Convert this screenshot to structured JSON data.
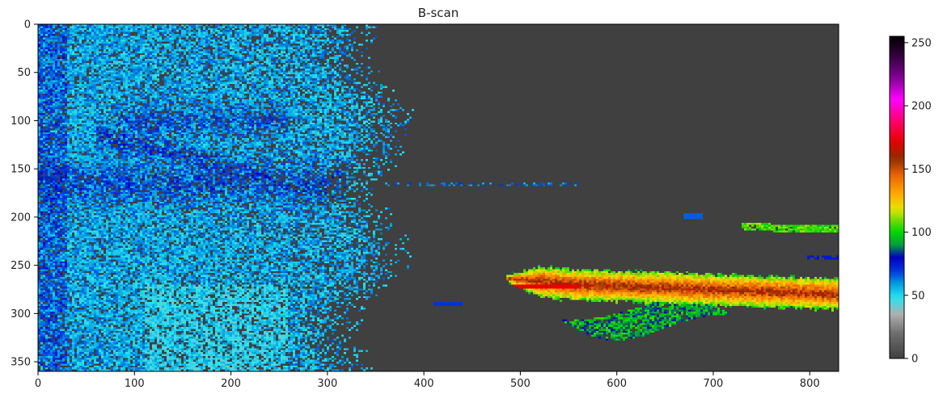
{
  "chart_data": {
    "type": "heatmap",
    "title": "B-scan",
    "xlabel": "",
    "ylabel": "",
    "xlim": [
      0,
      830
    ],
    "ylim": [
      360,
      0
    ],
    "x_ticks": [
      0,
      100,
      200,
      300,
      400,
      500,
      600,
      700,
      800
    ],
    "y_ticks": [
      0,
      50,
      100,
      150,
      200,
      250,
      300,
      350
    ],
    "colorbar": {
      "range": [
        0,
        255
      ],
      "ticks": [
        0,
        50,
        100,
        150,
        200,
        250
      ],
      "colormap": "nipy_spectral-like (dark grey at 0, cyan ~50, blue ~75, green ~100, yellow ~120, orange ~140, red ~170, magenta ~200, black at 255)"
    },
    "background_value": 0,
    "background_color": "#3f3f3f",
    "regions": [
      {
        "name": "near-field clutter",
        "x_range": [
          0,
          350
        ],
        "y_range": [
          0,
          360
        ],
        "typical_value": [
          45,
          70
        ]
      },
      {
        "name": "strong reflector",
        "x_range": [
          485,
          830
        ],
        "y_range": [
          245,
          310
        ],
        "typical_value": [
          95,
          175
        ]
      },
      {
        "name": "upper reflector",
        "x_range": [
          730,
          830
        ],
        "y_range": [
          205,
          220
        ],
        "typical_value": [
          85,
          120
        ]
      },
      {
        "name": "lower blob",
        "x_range": [
          540,
          720
        ],
        "y_range": [
          290,
          330
        ],
        "typical_value": [
          75,
          105
        ]
      }
    ]
  }
}
